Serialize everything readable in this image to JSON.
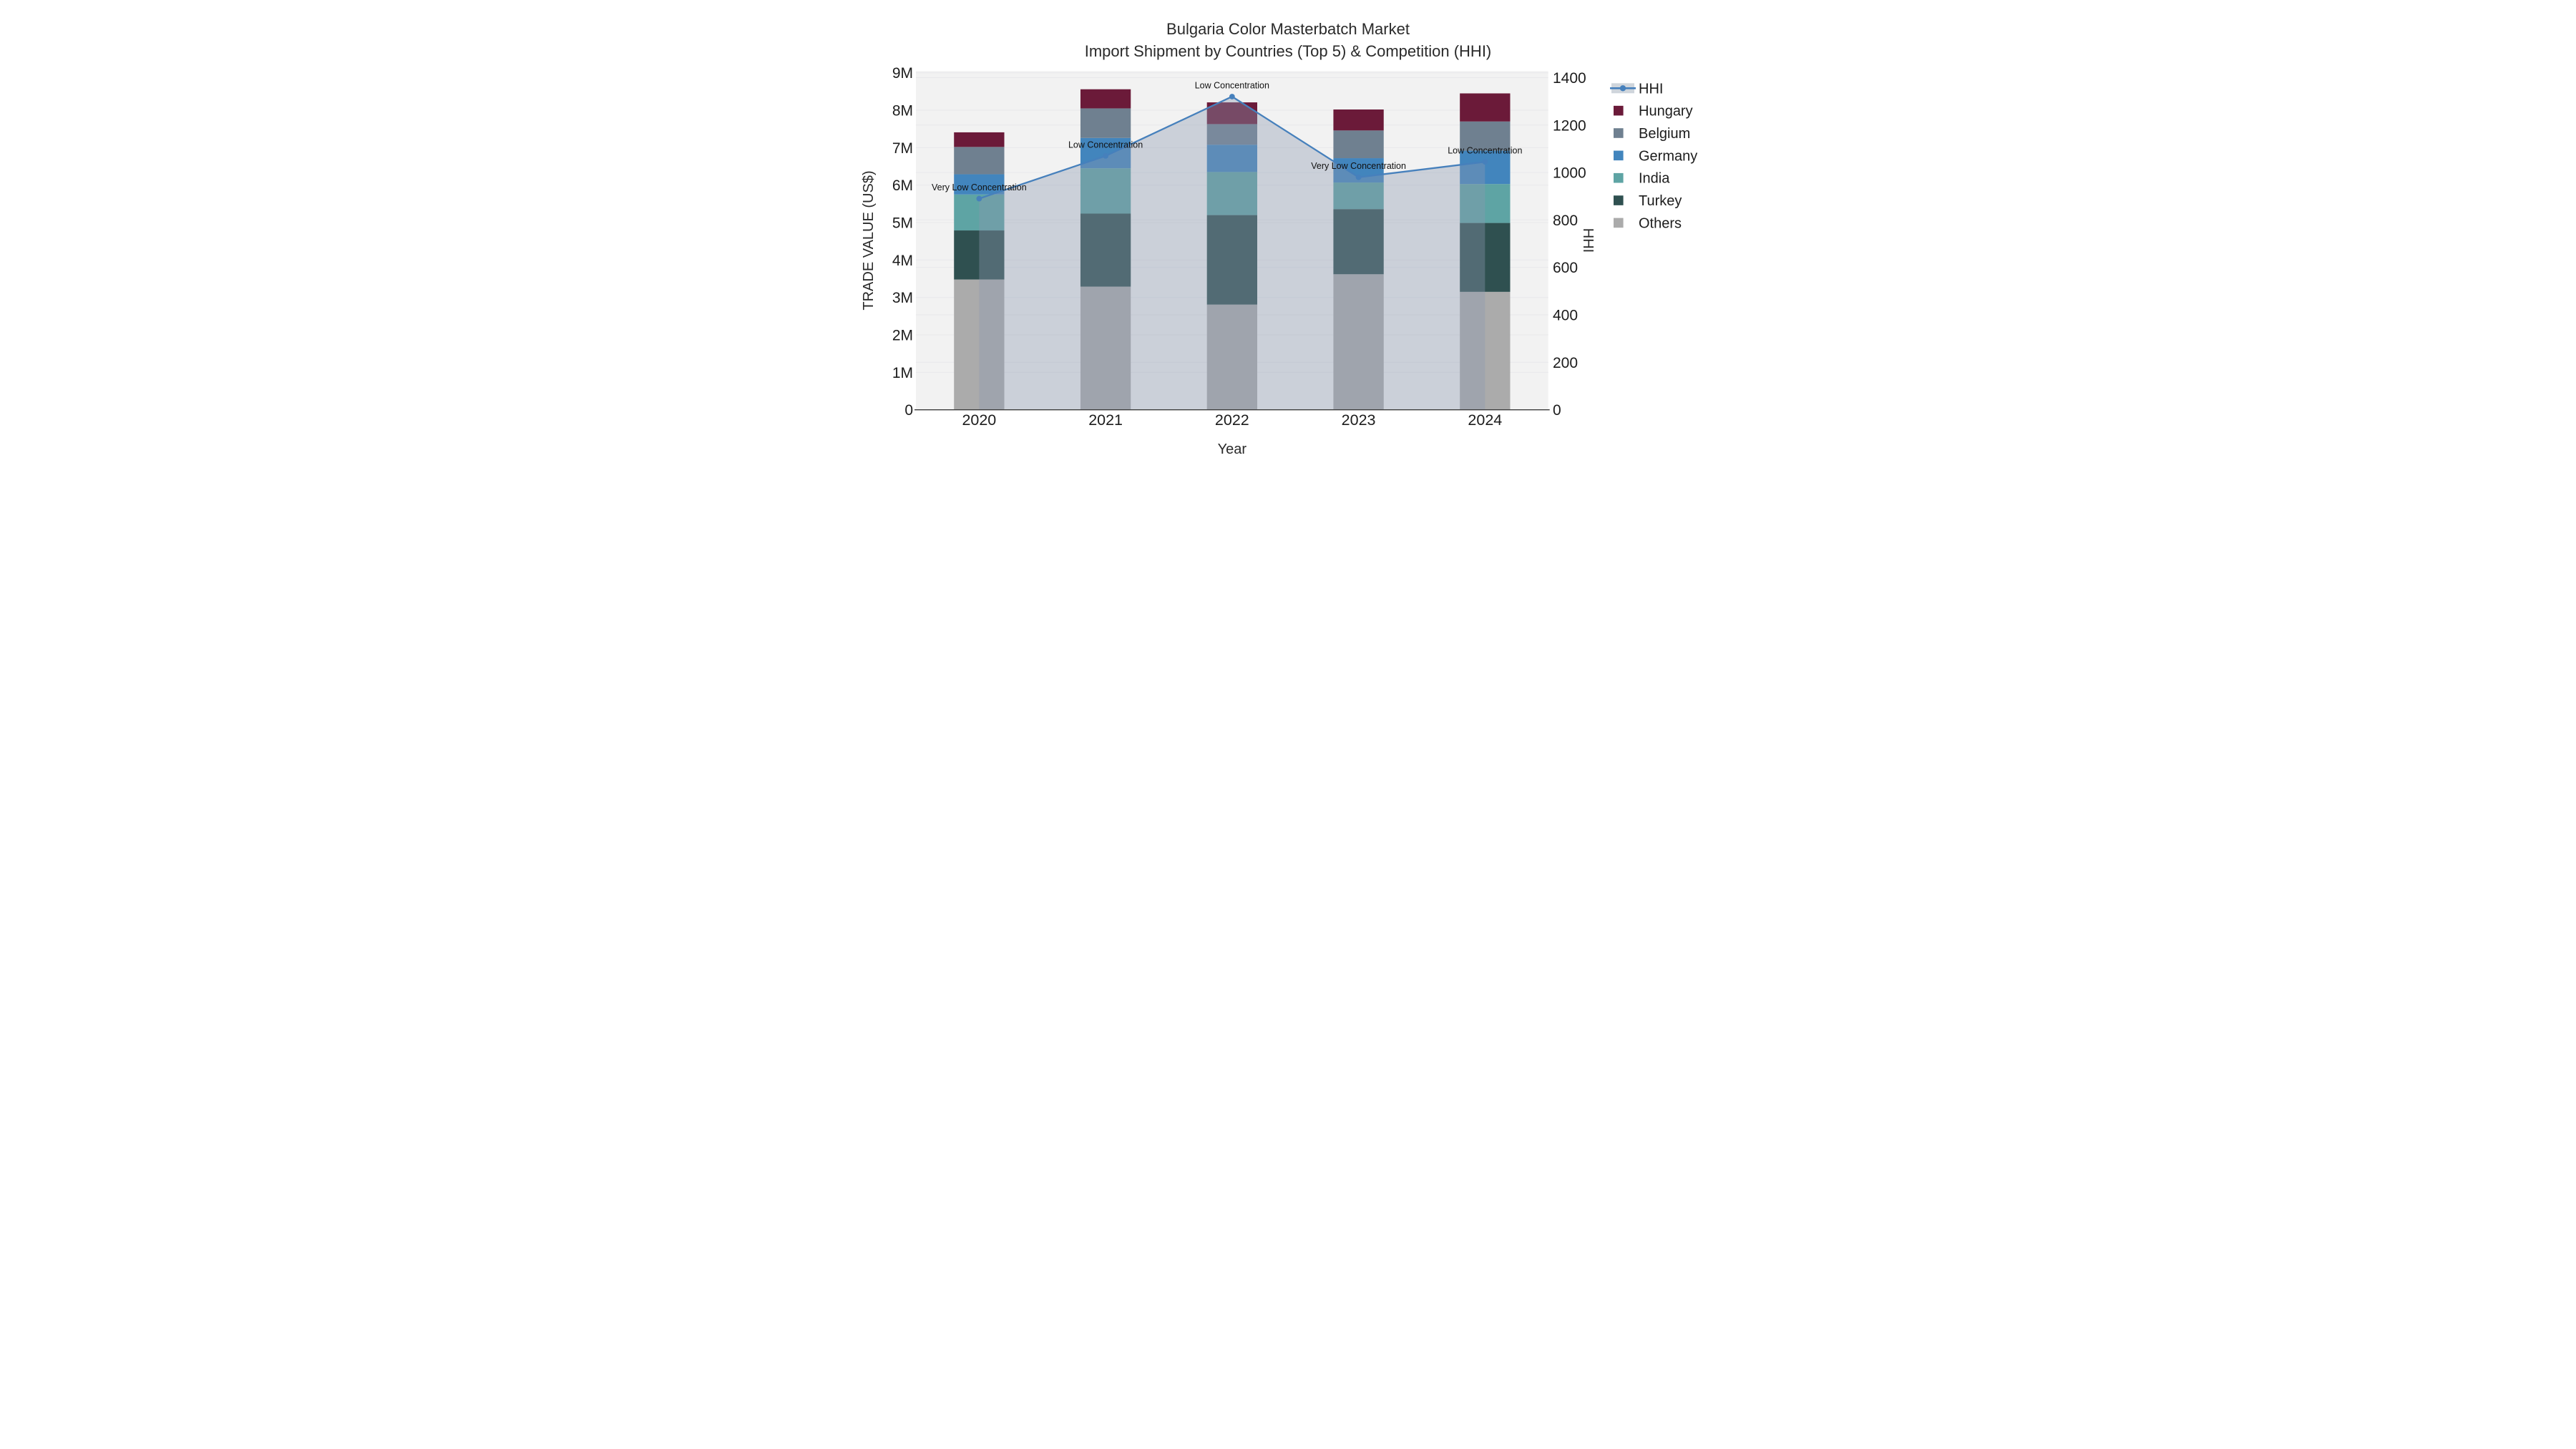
{
  "chart_data": {
    "type": "bar",
    "stacked": true,
    "title": "Bulgaria Color Masterbatch Market",
    "subtitle": "Import Shipment by Countries (Top 5) & Competition (HHI)",
    "xlabel": "Year",
    "ylabel": "TRADE VALUE (US$)",
    "y2label": "HHI",
    "categories": [
      "2020",
      "2021",
      "2022",
      "2023",
      "2024"
    ],
    "series": [
      {
        "name": "Others",
        "values": [
          3.48,
          3.29,
          2.81,
          3.62,
          3.15
        ],
        "color": "#ABABAB"
      },
      {
        "name": "Turkey",
        "values": [
          1.31,
          1.95,
          2.39,
          1.74,
          1.84
        ],
        "color": "#2F5050"
      },
      {
        "name": "India",
        "values": [
          0.96,
          1.21,
          1.15,
          0.71,
          1.04
        ],
        "color": "#5EA4A4"
      },
      {
        "name": "Germany",
        "values": [
          0.54,
          0.81,
          0.73,
          0.65,
          0.89
        ],
        "color": "#4285BD"
      },
      {
        "name": "Belgium",
        "values": [
          0.73,
          0.79,
          0.55,
          0.74,
          0.78
        ],
        "color": "#6F8090"
      },
      {
        "name": "Hungary",
        "values": [
          0.39,
          0.51,
          0.58,
          0.56,
          0.75
        ],
        "color": "#6B1A39"
      }
    ],
    "line_series": {
      "name": "HHI",
      "values": [
        890,
        1070,
        1320,
        980,
        1045
      ],
      "color": "#4680BC",
      "fill_color": "rgba(139,153,175,0.38)",
      "axis": "y2"
    },
    "annotations": [
      {
        "x": "2020",
        "text": "Very Low Concentration"
      },
      {
        "x": "2021",
        "text": "Low Concentration"
      },
      {
        "x": "2022",
        "text": "Low Concentration"
      },
      {
        "x": "2023",
        "text": "Very Low Concentration"
      },
      {
        "x": "2024",
        "text": "Low Concentration"
      }
    ],
    "y_axis": {
      "min": 0,
      "max": 9,
      "tick_labels": [
        "0",
        "1M",
        "2M",
        "3M",
        "4M",
        "5M",
        "6M",
        "7M",
        "8M",
        "9M"
      ]
    },
    "y2_axis": {
      "min": 0,
      "max": 1400,
      "tick_labels": [
        "0",
        "200",
        "400",
        "600",
        "800",
        "1000",
        "1200",
        "1400"
      ]
    },
    "legend": [
      "HHI",
      "Hungary",
      "Belgium",
      "Germany",
      "India",
      "Turkey",
      "Others"
    ],
    "grid": true,
    "legend_position": "right",
    "plot_bg": "#f2f2f2",
    "grid_color": "#e8e8eb",
    "baseline_color": "#3b3b3b",
    "legend_band_color": "#cfd5dc"
  }
}
